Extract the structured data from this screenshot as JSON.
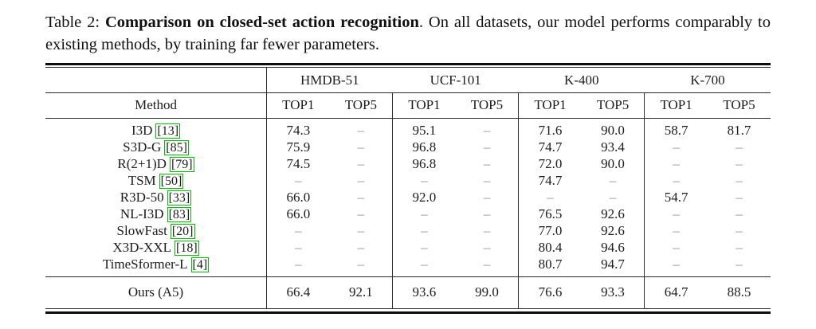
{
  "caption": {
    "label": "Table 2: ",
    "title": "Comparison on closed-set action recognition",
    "rest": ". On all datasets, our model performs comparably to existing methods, by training far fewer parameters."
  },
  "table": {
    "method_header": "Method",
    "col_groups": [
      {
        "label": "HMDB-51"
      },
      {
        "label": "UCF-101"
      },
      {
        "label": "K-400"
      },
      {
        "label": "K-700"
      }
    ],
    "metric_labels": [
      "TOP1",
      "TOP5"
    ],
    "dash": "–",
    "rows": [
      {
        "method": "I3D",
        "cite": "[13]",
        "values": [
          "74.3",
          "–",
          "95.1",
          "–",
          "71.6",
          "90.0",
          "58.7",
          "81.7"
        ]
      },
      {
        "method": "S3D-G",
        "cite": "[85]",
        "values": [
          "75.9",
          "–",
          "96.8",
          "–",
          "74.7",
          "93.4",
          "–",
          "–"
        ]
      },
      {
        "method": "R(2+1)D",
        "cite": "[79]",
        "values": [
          "74.5",
          "–",
          "96.8",
          "–",
          "72.0",
          "90.0",
          "–",
          "–"
        ]
      },
      {
        "method": "TSM",
        "cite": "[50]",
        "values": [
          "–",
          "–",
          "–",
          "–",
          "74.7",
          "–",
          "–",
          "–"
        ]
      },
      {
        "method": "R3D-50",
        "cite": "[33]",
        "values": [
          "66.0",
          "–",
          "92.0",
          "–",
          "–",
          "–",
          "54.7",
          "–"
        ]
      },
      {
        "method": "NL-I3D",
        "cite": "[83]",
        "values": [
          "66.0",
          "–",
          "–",
          "–",
          "76.5",
          "92.6",
          "–",
          "–"
        ]
      },
      {
        "method": "SlowFast",
        "cite": "[20]",
        "values": [
          "–",
          "–",
          "–",
          "–",
          "77.0",
          "92.6",
          "–",
          "–"
        ]
      },
      {
        "method": "X3D-XXL",
        "cite": "[18]",
        "values": [
          "–",
          "–",
          "–",
          "–",
          "80.4",
          "94.6",
          "–",
          "–"
        ]
      },
      {
        "method": "TimeSformer-L",
        "cite": "[4]",
        "values": [
          "–",
          "–",
          "–",
          "–",
          "80.7",
          "94.7",
          "–",
          "–"
        ]
      }
    ],
    "ours_row": {
      "method": "Ours (A5)",
      "values": [
        "66.4",
        "92.1",
        "93.6",
        "99.0",
        "76.6",
        "93.3",
        "64.7",
        "88.5"
      ]
    }
  },
  "colors": {
    "citation_border": "#00c000",
    "dash_text": "#8f8f8f",
    "body_text": "#1c1c1c"
  }
}
